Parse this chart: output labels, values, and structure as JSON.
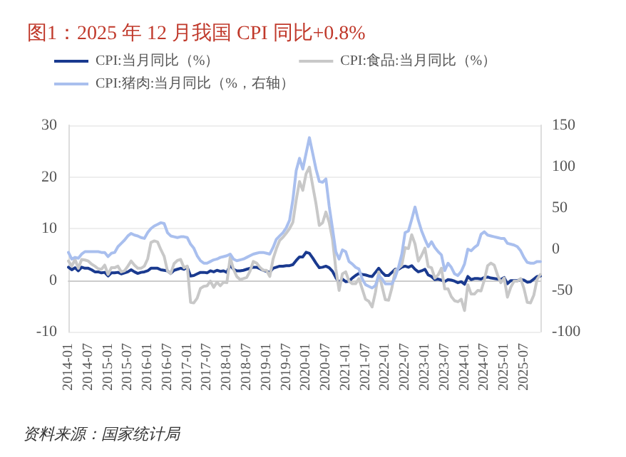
{
  "chart_data": {
    "type": "line",
    "title": "图1：2025 年 12 月我国 CPI 同比+0.8%",
    "categories": [
      "2014-01",
      null,
      null,
      null,
      null,
      null,
      "2014-07",
      null,
      null,
      null,
      null,
      null,
      "2015-01",
      null,
      null,
      null,
      null,
      null,
      "2015-07",
      null,
      null,
      null,
      null,
      null,
      "2016-01",
      null,
      null,
      null,
      null,
      null,
      "2016-07",
      null,
      null,
      null,
      null,
      null,
      "2017-01",
      null,
      null,
      null,
      null,
      null,
      "2017-07",
      null,
      null,
      null,
      null,
      null,
      "2018-01",
      null,
      null,
      null,
      null,
      null,
      "2018-07",
      null,
      null,
      null,
      null,
      null,
      "2019-01",
      null,
      null,
      null,
      null,
      null,
      "2019-07",
      null,
      null,
      null,
      null,
      null,
      "2020-01",
      null,
      null,
      null,
      null,
      null,
      "2020-07",
      null,
      null,
      null,
      null,
      null,
      "2021-01",
      null,
      null,
      null,
      null,
      null,
      "2021-07",
      null,
      null,
      null,
      null,
      null,
      "2022-01",
      null,
      null,
      null,
      null,
      null,
      "2022-07",
      null,
      null,
      null,
      null,
      null,
      "2023-01",
      null,
      null,
      null,
      null,
      null,
      "2023-07",
      null,
      null,
      null,
      null,
      null,
      "2024-01",
      null,
      null,
      null,
      null,
      null,
      "2024-07",
      null,
      null,
      null,
      null,
      null,
      "2025-01",
      null,
      null,
      null,
      null,
      null,
      "2025-07",
      null,
      null,
      null,
      null,
      null
    ],
    "series": [
      {
        "name": "CPI:当月同比（%）",
        "color": "#1a3a8f",
        "values": [
          2.5,
          2.0,
          2.4,
          1.8,
          2.5,
          2.3,
          2.3,
          2.0,
          1.6,
          1.6,
          1.4,
          1.5,
          0.8,
          1.4,
          1.4,
          1.5,
          1.2,
          1.4,
          1.6,
          2.0,
          1.6,
          1.3,
          1.5,
          1.6,
          1.8,
          2.3,
          2.3,
          2.3,
          2.0,
          1.9,
          1.8,
          1.3,
          1.9,
          2.1,
          2.3,
          2.1,
          2.5,
          0.8,
          0.9,
          1.2,
          1.5,
          1.5,
          1.4,
          1.8,
          1.6,
          1.9,
          1.7,
          1.8,
          1.5,
          2.9,
          2.1,
          1.8,
          1.8,
          1.9,
          2.1,
          2.3,
          2.5,
          2.5,
          2.2,
          1.9,
          1.7,
          1.5,
          2.3,
          2.5,
          2.7,
          2.7,
          2.8,
          2.8,
          3.0,
          3.8,
          4.5,
          4.5,
          5.4,
          5.2,
          4.3,
          3.3,
          2.4,
          2.5,
          2.7,
          2.4,
          1.7,
          0.5,
          -0.5,
          0.2,
          -0.3,
          -0.2,
          0.4,
          0.9,
          1.3,
          1.1,
          1.0,
          0.8,
          0.7,
          1.5,
          2.3,
          1.5,
          0.9,
          0.9,
          1.5,
          2.1,
          2.1,
          2.5,
          2.7,
          2.5,
          2.8,
          2.1,
          1.6,
          1.8,
          2.1,
          1.0,
          0.7,
          0.1,
          0.2,
          0.0,
          -0.3,
          0.1,
          0.0,
          -0.2,
          -0.5,
          -0.3,
          -0.8,
          0.7,
          0.1,
          0.3,
          0.3,
          0.2,
          0.5,
          0.6,
          0.4,
          0.3,
          0.2,
          0.1,
          0.5,
          -0.7,
          -0.1,
          -0.1,
          -0.1,
          0.1,
          0.0,
          -0.4,
          -0.3,
          0.2,
          0.7,
          0.8
        ]
      },
      {
        "name": "CPI:食品:当月同比（%）",
        "color": "#c8c8c8",
        "values": [
          3.7,
          2.7,
          4.0,
          2.3,
          4.0,
          3.9,
          3.7,
          3.1,
          2.7,
          2.2,
          2.1,
          2.9,
          1.1,
          2.4,
          2.4,
          2.7,
          1.6,
          1.8,
          2.7,
          3.7,
          2.9,
          2.3,
          2.3,
          2.7,
          4.1,
          7.3,
          7.6,
          7.4,
          5.9,
          4.6,
          1.8,
          1.3,
          3.2,
          3.8,
          4.0,
          2.4,
          2.7,
          -4.3,
          -4.4,
          -3.5,
          -1.6,
          -1.2,
          -1.1,
          -0.2,
          -1.4,
          -0.4,
          -1.1,
          -0.4,
          -0.5,
          4.4,
          2.1,
          0.7,
          0.1,
          0.3,
          0.5,
          1.7,
          3.6,
          3.3,
          2.5,
          1.9,
          1.9,
          0.7,
          4.1,
          6.1,
          7.7,
          8.3,
          9.1,
          10.0,
          11.2,
          15.5,
          19.1,
          17.4,
          20.6,
          21.9,
          18.3,
          14.8,
          10.6,
          11.1,
          13.2,
          11.2,
          7.9,
          2.2,
          -2.0,
          1.2,
          1.6,
          -0.2,
          -0.7,
          -0.7,
          0.3,
          -1.7,
          -3.7,
          -4.1,
          -5.2,
          -2.4,
          1.6,
          -1.2,
          -3.8,
          -3.9,
          -1.5,
          1.9,
          2.3,
          2.9,
          6.3,
          6.1,
          8.8,
          7.0,
          3.7,
          4.8,
          6.2,
          2.6,
          2.4,
          0.4,
          1.0,
          2.3,
          -1.7,
          -1.7,
          -3.2,
          -4.0,
          -4.2,
          -3.7,
          -5.9,
          -0.9,
          -2.7,
          -2.7,
          -2.0,
          -2.1,
          0.0,
          2.8,
          3.3,
          2.9,
          1.0,
          -0.5,
          0.4,
          -3.3,
          -1.4,
          -0.2,
          -0.2,
          0.3,
          -1.6,
          -4.3,
          -4.4,
          -2.9,
          0.2,
          1.1
        ]
      },
      {
        "name": "CPI:猪肉:当月同比（%，右轴）",
        "color": "#a9bfee",
        "axis": "y2",
        "values": [
          -4,
          -12,
          -10,
          -11,
          -6,
          -3,
          -3,
          -3,
          -3,
          -3,
          -4,
          -4,
          -9,
          -5,
          -4,
          3,
          7,
          11,
          16,
          19,
          17,
          16,
          14,
          13,
          20,
          25,
          28,
          30,
          32,
          31,
          20,
          16,
          15,
          14,
          15,
          15,
          14,
          6,
          1,
          -8,
          -14,
          -17,
          -17,
          -15,
          -13,
          -12,
          -10,
          -9,
          -8,
          -6,
          -12,
          -14,
          -13,
          -12,
          -10,
          -8,
          -6,
          -5,
          -4,
          -4,
          -5,
          -6,
          2,
          12,
          16,
          20,
          26,
          35,
          60,
          95,
          110,
          97,
          116,
          135,
          116,
          97,
          82,
          81,
          85,
          52,
          25,
          -3,
          -12,
          -1,
          -3,
          -15,
          -18,
          -22,
          -24,
          -36,
          -43,
          -45,
          -47,
          -44,
          -32,
          -36,
          -42,
          -42,
          -42,
          -34,
          -22,
          -6,
          20,
          22,
          36,
          51,
          35,
          22,
          12,
          3,
          9,
          2,
          -3,
          -7,
          -26,
          -17,
          -22,
          -30,
          -32,
          -27,
          -18,
          0,
          -2,
          2,
          5,
          18,
          21,
          17,
          16,
          15,
          14,
          13,
          13,
          7,
          6,
          5,
          3,
          -2,
          -10,
          -16,
          -17,
          -17,
          -15,
          -15
        ]
      }
    ],
    "ylim": [
      -10,
      30
    ],
    "yticks": [
      -10,
      0,
      10,
      20,
      30
    ],
    "y2lim": [
      -100,
      150
    ],
    "y2ticks": [
      -100,
      -50,
      0,
      50,
      100,
      150
    ],
    "legend": "top left",
    "grid": "y",
    "marker": "none",
    "line_style": "solid",
    "annotations": [
      "资料来源：国家统计局"
    ]
  }
}
